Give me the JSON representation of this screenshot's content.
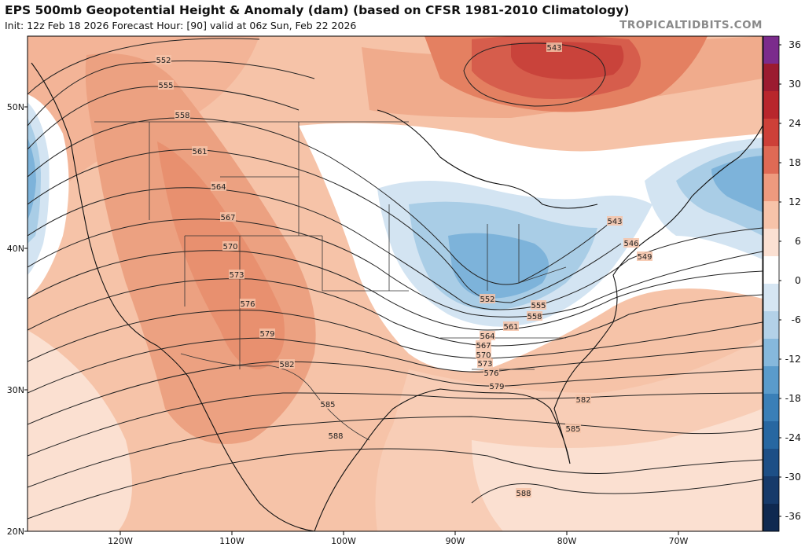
{
  "header": {
    "title": "EPS 500mb Geopotential Height & Anomaly (dam) (based on CFSR 1981-2010 Climatology)",
    "subtitle": "Init: 12z Feb 18 2026   Forecast Hour: [90]   valid at 06z Sun, Feb 22 2026",
    "brand": "TROPICALTIDBITS.COM"
  },
  "map": {
    "lat_labels": [
      "50N",
      "40N",
      "30N",
      "20N"
    ],
    "lon_labels": [
      "120W",
      "110W",
      "100W",
      "90W",
      "80W",
      "70W"
    ],
    "height_contours": [
      "552",
      "555",
      "558",
      "561",
      "564",
      "567",
      "570",
      "573",
      "576",
      "579",
      "582",
      "585",
      "588",
      "543",
      "543",
      "546",
      "549",
      "552",
      "555",
      "558",
      "561",
      "564",
      "567",
      "570",
      "573",
      "576",
      "579",
      "582",
      "585",
      "588"
    ],
    "colorbar": {
      "labels": [
        "36",
        "30",
        "24",
        "18",
        "12",
        "6",
        "0",
        "-6",
        "-12",
        "-18",
        "-24",
        "-30",
        "-36"
      ],
      "colors": [
        "#7b2b8c",
        "#9b1b30",
        "#b8262c",
        "#cd4038",
        "#df6a55",
        "#ee9a7e",
        "#f7c3a9",
        "#fbe0d2",
        "#ffffff",
        "#d6e6f3",
        "#b3d1e8",
        "#86b8dc",
        "#5a9bcb",
        "#3a7fb7",
        "#2767a1",
        "#1d4f86",
        "#163a6a",
        "#0f2950"
      ]
    },
    "anomaly_colors": {
      "neg_light": "#d3e4f2",
      "neg_mid": "#a9cde6",
      "neg_strong": "#7db3da",
      "pos_light": "#fbe0d1",
      "pos_mid": "#f6c0a5",
      "pos_strong": "#eda080",
      "pos_deep": "#e27d61",
      "pos_deeper": "#d5594a",
      "pos_deepest": "#c8403c"
    }
  }
}
